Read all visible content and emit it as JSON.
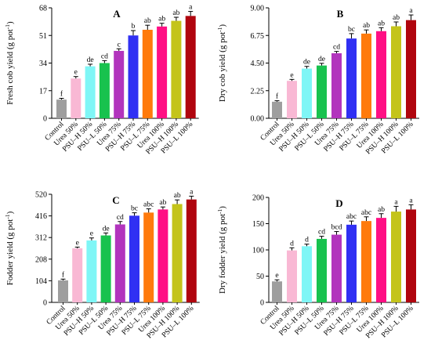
{
  "categories": [
    "Control",
    "Urea 50%",
    "PSU–H 50%",
    "PSU–L 50%",
    "Urea 75%",
    "PSU–H 75%",
    "PSU–L 75%",
    "Urea 100%",
    "PSU–H 100%",
    "PSU–L 100%"
  ],
  "colors": {
    "bars": [
      "#9e9e9e",
      "#f9b8d4",
      "#7ff6f6",
      "#18c24e",
      "#b234bd",
      "#3030f3",
      "#ff7a0c",
      "#ff0f84",
      "#c4c41a",
      "#b0050e"
    ]
  },
  "chart_data": [
    {
      "type": "bar",
      "panel_label": "A",
      "ylabel": "Fresh cob yield",
      "ylabel_unit": "(g pot",
      "ylabel_exp": "-1",
      "ylabel_close": ")",
      "ylim": [
        0,
        68
      ],
      "yticks": [
        "0",
        "17",
        "34",
        "51",
        "68"
      ],
      "values": [
        11.5,
        24.5,
        32.0,
        34.0,
        41.5,
        51.0,
        54.5,
        56.5,
        60.0,
        63.0
      ],
      "errors": [
        0.8,
        1.2,
        1.3,
        1.5,
        1.3,
        3.0,
        2.8,
        2.0,
        2.2,
        2.8
      ],
      "letters": [
        "f",
        "e",
        "de",
        "cd",
        "c",
        "b",
        "ab",
        "ab",
        "ab",
        "a"
      ]
    },
    {
      "type": "bar",
      "panel_label": "B",
      "ylabel": "Dry cob yield",
      "ylabel_unit": "(g pot",
      "ylabel_exp": "-1",
      "ylabel_close": ")",
      "ylim": [
        0,
        9
      ],
      "yticks": [
        "0.00",
        "2.25",
        "4.50",
        "6.75",
        "9.00"
      ],
      "values": [
        1.35,
        3.05,
        4.05,
        4.3,
        5.3,
        6.5,
        6.9,
        7.1,
        7.5,
        8.0
      ],
      "errors": [
        0.08,
        0.12,
        0.18,
        0.18,
        0.15,
        0.4,
        0.3,
        0.28,
        0.35,
        0.42
      ],
      "letters": [
        "f",
        "e",
        "de",
        "de",
        "cd",
        "bc",
        "ab",
        "ab",
        "ab",
        "a"
      ]
    },
    {
      "type": "bar",
      "panel_label": "C",
      "ylabel": "Fodder yield",
      "ylabel_unit": "(g pot",
      "ylabel_exp": "-1",
      "ylabel_close": ")",
      "ylim": [
        0,
        520
      ],
      "yticks": [
        "0",
        "104",
        "208",
        "312",
        "416",
        "520"
      ],
      "values": [
        106,
        260,
        298,
        322,
        375,
        417,
        432,
        447,
        473,
        495
      ],
      "errors": [
        6,
        6,
        12,
        12,
        14,
        14,
        18,
        12,
        20,
        16
      ],
      "letters": [
        "f",
        "e",
        "e",
        "de",
        "cd",
        "bc",
        "abc",
        "ab",
        "ab",
        "a"
      ]
    },
    {
      "type": "bar",
      "panel_label": "D",
      "ylabel": "Dry fodder yield",
      "ylabel_unit": "(g pot",
      "ylabel_exp": "-1",
      "ylabel_close": ")",
      "ylim": [
        0,
        200
      ],
      "yticks": [
        "0",
        "50",
        "100",
        "150",
        "200"
      ],
      "values": [
        40,
        99,
        107,
        121,
        129,
        148,
        155,
        161,
        173,
        177
      ],
      "errors": [
        3,
        5,
        4,
        5,
        6,
        7,
        8,
        8,
        10,
        9
      ],
      "letters": [
        "e",
        "d",
        "d",
        "cd",
        "bcd",
        "abc",
        "abc",
        "ab",
        "a",
        "a"
      ]
    }
  ]
}
